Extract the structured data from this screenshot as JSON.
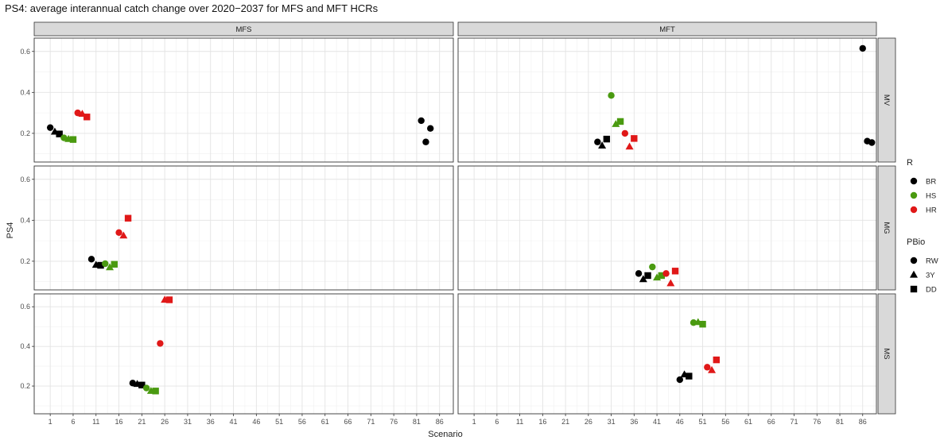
{
  "chart_data": {
    "type": "scatter",
    "title": "PS4: average interannual catch change over 2020−2037 for MFS and MFT HCRs",
    "xlabel": "Scenario",
    "ylabel": "PS4",
    "xlim": [
      -2.5,
      89
    ],
    "ylim": [
      0.06,
      0.665
    ],
    "x_ticks": [
      1,
      6,
      11,
      16,
      21,
      26,
      31,
      36,
      41,
      46,
      51,
      56,
      61,
      66,
      71,
      76,
      81,
      86
    ],
    "y_ticks": [
      0.2,
      0.4,
      0.6
    ],
    "grid": true,
    "facet_columns": [
      "MFS",
      "MFT"
    ],
    "facet_rows": [
      "MV",
      "MG",
      "MS"
    ],
    "legend": {
      "placement": "right",
      "color_title": "R",
      "color_entries": [
        {
          "label": "BR",
          "color": "#000000"
        },
        {
          "label": "HS",
          "color": "#4a9a10"
        },
        {
          "label": "HR",
          "color": "#e01818"
        }
      ],
      "shape_title": "PBio",
      "shape_entries": [
        {
          "label": "RW",
          "shape": "circle"
        },
        {
          "label": "3Y",
          "shape": "triangle"
        },
        {
          "label": "DD",
          "shape": "square"
        }
      ]
    },
    "panels": [
      {
        "col": "MFS",
        "row": "MV",
        "points": [
          {
            "x": 1,
            "y": 0.228,
            "R": "BR",
            "PBio": "RW"
          },
          {
            "x": 2,
            "y": 0.208,
            "R": "BR",
            "PBio": "3Y"
          },
          {
            "x": 3,
            "y": 0.197,
            "R": "BR",
            "PBio": "DD"
          },
          {
            "x": 4,
            "y": 0.178,
            "R": "HS",
            "PBio": "RW"
          },
          {
            "x": 5,
            "y": 0.172,
            "R": "HS",
            "PBio": "3Y"
          },
          {
            "x": 6,
            "y": 0.17,
            "R": "HS",
            "PBio": "DD"
          },
          {
            "x": 7,
            "y": 0.3,
            "R": "HR",
            "PBio": "RW"
          },
          {
            "x": 8,
            "y": 0.295,
            "R": "HR",
            "PBio": "3Y"
          },
          {
            "x": 9,
            "y": 0.28,
            "R": "HR",
            "PBio": "DD"
          },
          {
            "x": 82,
            "y": 0.262,
            "R": "BR",
            "PBio": "RW"
          },
          {
            "x": 83,
            "y": 0.158,
            "R": "BR",
            "PBio": "RW"
          },
          {
            "x": 84,
            "y": 0.224,
            "R": "BR",
            "PBio": "RW"
          }
        ]
      },
      {
        "col": "MFT",
        "row": "MV",
        "points": [
          {
            "x": 28,
            "y": 0.158,
            "R": "BR",
            "PBio": "RW"
          },
          {
            "x": 29,
            "y": 0.14,
            "R": "BR",
            "PBio": "3Y"
          },
          {
            "x": 30,
            "y": 0.172,
            "R": "BR",
            "PBio": "DD"
          },
          {
            "x": 31,
            "y": 0.385,
            "R": "HS",
            "PBio": "RW"
          },
          {
            "x": 32,
            "y": 0.245,
            "R": "HS",
            "PBio": "3Y"
          },
          {
            "x": 33,
            "y": 0.258,
            "R": "HS",
            "PBio": "DD"
          },
          {
            "x": 34,
            "y": 0.2,
            "R": "HR",
            "PBio": "RW"
          },
          {
            "x": 35,
            "y": 0.135,
            "R": "HR",
            "PBio": "3Y"
          },
          {
            "x": 36,
            "y": 0.175,
            "R": "HR",
            "PBio": "DD"
          },
          {
            "x": 86,
            "y": 0.615,
            "R": "BR",
            "PBio": "RW"
          },
          {
            "x": 87,
            "y": 0.162,
            "R": "BR",
            "PBio": "RW"
          },
          {
            "x": 88,
            "y": 0.155,
            "R": "BR",
            "PBio": "RW"
          }
        ]
      },
      {
        "col": "MFS",
        "row": "MG",
        "points": [
          {
            "x": 10,
            "y": 0.21,
            "R": "BR",
            "PBio": "RW"
          },
          {
            "x": 11,
            "y": 0.182,
            "R": "BR",
            "PBio": "3Y"
          },
          {
            "x": 12,
            "y": 0.18,
            "R": "BR",
            "PBio": "DD"
          },
          {
            "x": 13,
            "y": 0.188,
            "R": "HS",
            "PBio": "RW"
          },
          {
            "x": 14,
            "y": 0.17,
            "R": "HS",
            "PBio": "3Y"
          },
          {
            "x": 15,
            "y": 0.185,
            "R": "HS",
            "PBio": "DD"
          },
          {
            "x": 16,
            "y": 0.34,
            "R": "HR",
            "PBio": "RW"
          },
          {
            "x": 17,
            "y": 0.325,
            "R": "HR",
            "PBio": "3Y"
          },
          {
            "x": 18,
            "y": 0.41,
            "R": "HR",
            "PBio": "DD"
          }
        ]
      },
      {
        "col": "MFT",
        "row": "MG",
        "points": [
          {
            "x": 37,
            "y": 0.14,
            "R": "BR",
            "PBio": "RW"
          },
          {
            "x": 38,
            "y": 0.112,
            "R": "BR",
            "PBio": "3Y"
          },
          {
            "x": 39,
            "y": 0.13,
            "R": "BR",
            "PBio": "DD"
          },
          {
            "x": 40,
            "y": 0.172,
            "R": "HS",
            "PBio": "RW"
          },
          {
            "x": 41,
            "y": 0.12,
            "R": "HS",
            "PBio": "3Y"
          },
          {
            "x": 42,
            "y": 0.13,
            "R": "HS",
            "PBio": "DD"
          },
          {
            "x": 43,
            "y": 0.14,
            "R": "HR",
            "PBio": "RW"
          },
          {
            "x": 44,
            "y": 0.092,
            "R": "HR",
            "PBio": "3Y"
          },
          {
            "x": 45,
            "y": 0.152,
            "R": "HR",
            "PBio": "DD"
          }
        ]
      },
      {
        "col": "MFS",
        "row": "MS",
        "points": [
          {
            "x": 19,
            "y": 0.215,
            "R": "BR",
            "PBio": "RW"
          },
          {
            "x": 20,
            "y": 0.21,
            "R": "BR",
            "PBio": "3Y"
          },
          {
            "x": 21,
            "y": 0.205,
            "R": "BR",
            "PBio": "DD"
          },
          {
            "x": 22,
            "y": 0.19,
            "R": "HS",
            "PBio": "RW"
          },
          {
            "x": 23,
            "y": 0.175,
            "R": "HS",
            "PBio": "3Y"
          },
          {
            "x": 24,
            "y": 0.175,
            "R": "HS",
            "PBio": "DD"
          },
          {
            "x": 25,
            "y": 0.415,
            "R": "HR",
            "PBio": "RW"
          },
          {
            "x": 26,
            "y": 0.635,
            "R": "HR",
            "PBio": "3Y"
          },
          {
            "x": 27,
            "y": 0.635,
            "R": "HR",
            "PBio": "DD"
          }
        ]
      },
      {
        "col": "MFT",
        "row": "MS",
        "points": [
          {
            "x": 46,
            "y": 0.232,
            "R": "BR",
            "PBio": "RW"
          },
          {
            "x": 47,
            "y": 0.258,
            "R": "BR",
            "PBio": "3Y"
          },
          {
            "x": 48,
            "y": 0.25,
            "R": "BR",
            "PBio": "DD"
          },
          {
            "x": 49,
            "y": 0.52,
            "R": "HS",
            "PBio": "RW"
          },
          {
            "x": 50,
            "y": 0.522,
            "R": "HS",
            "PBio": "3Y"
          },
          {
            "x": 51,
            "y": 0.512,
            "R": "HS",
            "PBio": "DD"
          },
          {
            "x": 52,
            "y": 0.295,
            "R": "HR",
            "PBio": "RW"
          },
          {
            "x": 53,
            "y": 0.28,
            "R": "HR",
            "PBio": "3Y"
          },
          {
            "x": 54,
            "y": 0.332,
            "R": "HR",
            "PBio": "DD"
          }
        ]
      }
    ]
  }
}
